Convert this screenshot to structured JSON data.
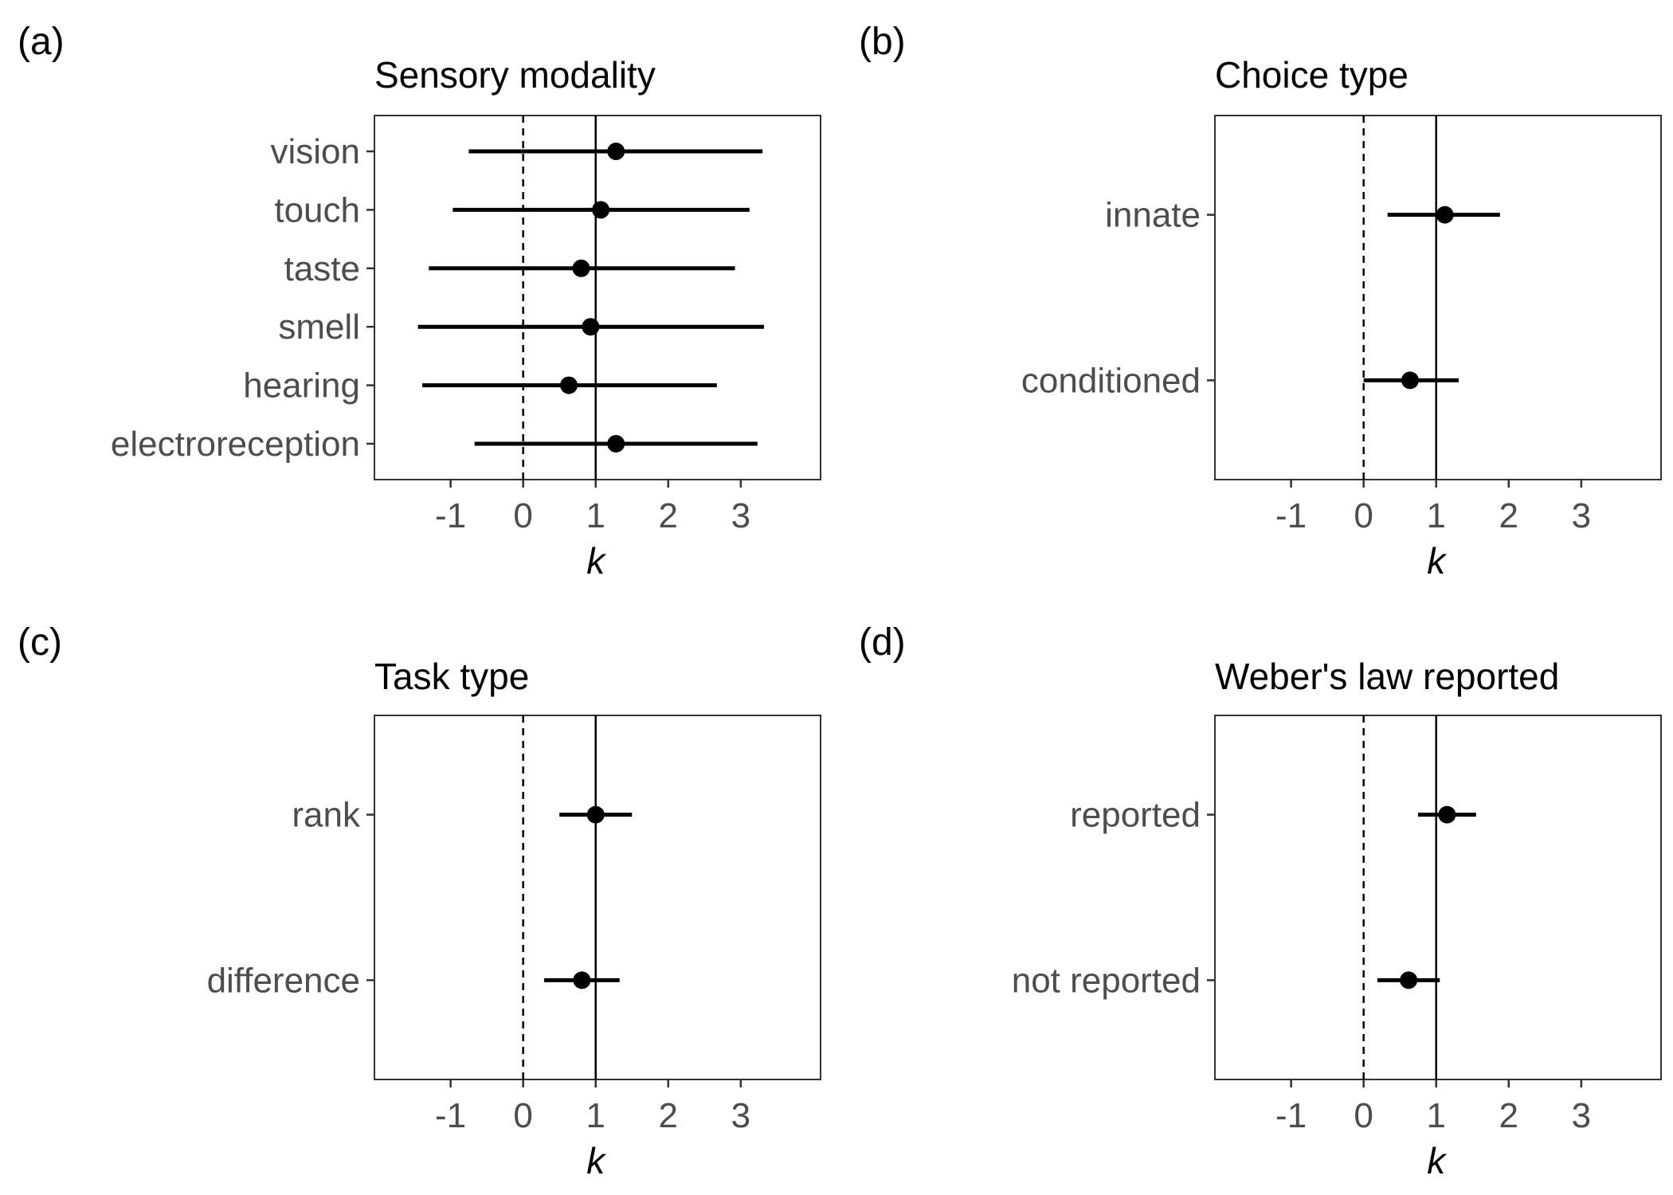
{
  "chart_data": [
    {
      "type": "forest",
      "panel_label": "(a)",
      "title": "Sensory modality",
      "xlabel": "k",
      "xlim": [
        -2.05,
        4.1
      ],
      "xticks": [
        -1,
        0,
        1,
        2,
        3
      ],
      "tick_labels": [
        "-1",
        "0",
        "1",
        "2",
        "3"
      ],
      "reference_lines": {
        "dashed": 0,
        "solid": 1
      },
      "categories": [
        "vision",
        "touch",
        "taste",
        "smell",
        "hearing",
        "electroreception"
      ],
      "estimate": [
        1.28,
        1.07,
        0.8,
        0.93,
        0.63,
        1.28
      ],
      "lower": [
        -0.75,
        -0.97,
        -1.3,
        -1.45,
        -1.39,
        -0.67
      ],
      "upper": [
        3.3,
        3.12,
        2.92,
        3.32,
        2.67,
        3.23
      ]
    },
    {
      "type": "forest",
      "panel_label": "(b)",
      "title": "Choice type",
      "xlabel": "k",
      "xlim": [
        -2.05,
        4.1
      ],
      "xticks": [
        -1,
        0,
        1,
        2,
        3
      ],
      "tick_labels": [
        "-1",
        "0",
        "1",
        "2",
        "3"
      ],
      "reference_lines": {
        "dashed": 0,
        "solid": 1
      },
      "categories": [
        "innate",
        "conditioned"
      ],
      "estimate": [
        1.12,
        0.64
      ],
      "lower": [
        0.33,
        0.0
      ],
      "upper": [
        1.88,
        1.31
      ]
    },
    {
      "type": "forest",
      "panel_label": "(c)",
      "title": "Task type",
      "xlabel": "k",
      "xlim": [
        -2.05,
        4.1
      ],
      "xticks": [
        -1,
        0,
        1,
        2,
        3
      ],
      "tick_labels": [
        "-1",
        "0",
        "1",
        "2",
        "3"
      ],
      "reference_lines": {
        "dashed": 0,
        "solid": 1
      },
      "categories": [
        "rank",
        "difference"
      ],
      "estimate": [
        1.0,
        0.81
      ],
      "lower": [
        0.5,
        0.29
      ],
      "upper": [
        1.5,
        1.33
      ]
    },
    {
      "type": "forest",
      "panel_label": "(d)",
      "title": "Weber's law reported",
      "xlabel": "k",
      "xlim": [
        -2.05,
        4.1
      ],
      "xticks": [
        -1,
        0,
        1,
        2,
        3
      ],
      "tick_labels": [
        "-1",
        "0",
        "1",
        "2",
        "3"
      ],
      "reference_lines": {
        "dashed": 0,
        "solid": 1
      },
      "categories": [
        "reported",
        "not reported"
      ],
      "estimate": [
        1.15,
        0.62
      ],
      "lower": [
        0.75,
        0.19
      ],
      "upper": [
        1.55,
        1.05
      ]
    }
  ]
}
